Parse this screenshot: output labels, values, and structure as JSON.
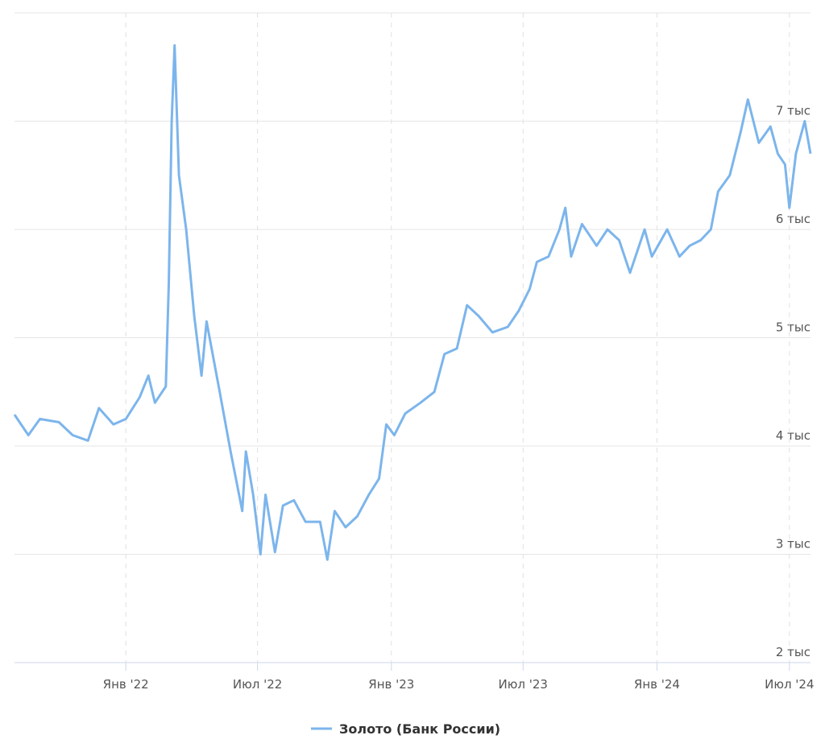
{
  "chart_data": {
    "type": "line",
    "x": [
      "2021-08-01",
      "2021-08-20",
      "2021-09-05",
      "2021-10-01",
      "2021-10-20",
      "2021-11-10",
      "2021-11-25",
      "2021-12-15",
      "2022-01-01",
      "2022-01-20",
      "2022-02-01",
      "2022-02-10",
      "2022-02-25",
      "2022-03-01",
      "2022-03-05",
      "2022-03-09",
      "2022-03-15",
      "2022-03-25",
      "2022-04-05",
      "2022-04-15",
      "2022-04-22",
      "2022-05-10",
      "2022-05-25",
      "2022-06-10",
      "2022-06-15",
      "2022-06-25",
      "2022-07-05",
      "2022-07-12",
      "2022-07-25",
      "2022-08-05",
      "2022-08-20",
      "2022-09-05",
      "2022-09-25",
      "2022-10-05",
      "2022-10-15",
      "2022-10-30",
      "2022-11-15",
      "2022-12-01",
      "2022-12-15",
      "2022-12-25",
      "2023-01-05",
      "2023-01-20",
      "2023-02-10",
      "2023-03-01",
      "2023-03-15",
      "2023-04-01",
      "2023-04-15",
      "2023-05-01",
      "2023-05-20",
      "2023-06-10",
      "2023-06-25",
      "2023-07-10",
      "2023-07-20",
      "2023-08-05",
      "2023-08-20",
      "2023-08-28",
      "2023-09-05",
      "2023-09-20",
      "2023-10-10",
      "2023-10-25",
      "2023-11-10",
      "2023-11-25",
      "2023-12-15",
      "2023-12-25",
      "2024-01-15",
      "2024-02-01",
      "2024-02-15",
      "2024-03-01",
      "2024-03-15",
      "2024-03-25",
      "2024-04-10",
      "2024-04-25",
      "2024-05-05",
      "2024-05-20",
      "2024-06-05",
      "2024-06-15",
      "2024-06-25",
      "2024-07-01",
      "2024-07-10",
      "2024-07-22",
      "2024-07-30"
    ],
    "series": [
      {
        "name": "Золото (Банк России)",
        "color": "#7cb5ec",
        "values": [
          4290,
          4100,
          4250,
          4220,
          4100,
          4050,
          4350,
          4200,
          4250,
          4450,
          4650,
          4400,
          4550,
          5500,
          7000,
          7700,
          6500,
          6000,
          5200,
          4650,
          5150,
          4500,
          3950,
          3400,
          3950,
          3550,
          3000,
          3550,
          3020,
          3450,
          3500,
          3300,
          3300,
          2950,
          3400,
          3250,
          3350,
          3550,
          3700,
          4200,
          4100,
          4300,
          4400,
          4500,
          4850,
          4900,
          5300,
          5200,
          5050,
          5100,
          5250,
          5450,
          5700,
          5750,
          6000,
          6200,
          5750,
          6050,
          5850,
          6000,
          5900,
          5600,
          6000,
          5750,
          6000,
          5750,
          5850,
          5900,
          6000,
          6350,
          6500,
          6900,
          7200,
          6800,
          6950,
          6700,
          6600,
          6200,
          6700,
          7000,
          6700
        ]
      }
    ],
    "xlim": [
      "2021-08-01",
      "2024-07-30"
    ],
    "xticks": [
      {
        "value": "2022-01-01",
        "label": "Янв '22"
      },
      {
        "value": "2022-07-01",
        "label": "Июл '22"
      },
      {
        "value": "2023-01-01",
        "label": "Янв '23"
      },
      {
        "value": "2023-07-01",
        "label": "Июл '23"
      },
      {
        "value": "2024-01-01",
        "label": "Янв '24"
      },
      {
        "value": "2024-07-01",
        "label": "Июл '24"
      }
    ],
    "ylim": [
      2000,
      8000
    ],
    "yticks": [
      {
        "value": 2000,
        "label": "2 тыс"
      },
      {
        "value": 3000,
        "label": "3 тыс"
      },
      {
        "value": 4000,
        "label": "4 тыс"
      },
      {
        "value": 5000,
        "label": "5 тыс"
      },
      {
        "value": 6000,
        "label": "6 тыс"
      },
      {
        "value": 7000,
        "label": "7 тыс"
      }
    ],
    "grid": true,
    "legend": "bottom"
  }
}
